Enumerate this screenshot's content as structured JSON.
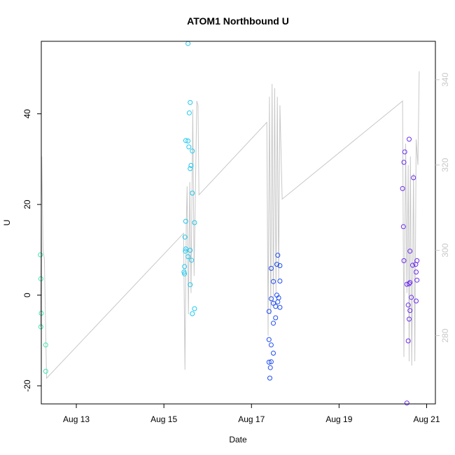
{
  "chart_data": {
    "type": "scatter",
    "title": "ATOM1 Northbound U",
    "xlabel": "Date",
    "ylabel": "U",
    "x_ticks": [
      "Aug 13",
      "Aug 15",
      "Aug 17",
      "Aug 19",
      "Aug 21"
    ],
    "x_tick_values": [
      13,
      15,
      17,
      19,
      21
    ],
    "xlim": [
      12.2,
      21.2
    ],
    "y_ticks": [
      -20,
      0,
      20,
      40
    ],
    "ylim": [
      -24,
      56
    ],
    "y2_ticks": [
      280,
      300,
      320,
      340
    ],
    "y2lim": [
      264,
      349
    ],
    "grid": false,
    "legend": "none",
    "colors": {
      "background_line": "#c8c8c8",
      "right_axis": "#c8c8c8",
      "frame": "#000000"
    },
    "series": [
      {
        "color": "#3be6b0",
        "points": [
          [
            12.18,
            8.9
          ],
          [
            12.19,
            3.6
          ],
          [
            12.2,
            -4.0
          ],
          [
            12.19,
            -7.0
          ],
          [
            12.3,
            -11.0
          ],
          [
            12.3,
            -16.8
          ]
        ]
      },
      {
        "color": "#1fc8f0",
        "points": [
          [
            15.55,
            55.5
          ],
          [
            15.6,
            42.5
          ],
          [
            15.58,
            40.2
          ],
          [
            15.5,
            34.1
          ],
          [
            15.55,
            34.0
          ],
          [
            15.57,
            32.7
          ],
          [
            15.65,
            31.8
          ],
          [
            15.62,
            28.6
          ],
          [
            15.6,
            27.9
          ],
          [
            15.65,
            22.5
          ],
          [
            15.5,
            16.3
          ],
          [
            15.7,
            16.0
          ],
          [
            15.48,
            12.8
          ],
          [
            15.5,
            10.2
          ],
          [
            15.49,
            9.7
          ],
          [
            15.6,
            9.9
          ],
          [
            15.55,
            8.5
          ],
          [
            15.63,
            7.7
          ],
          [
            15.47,
            6.3
          ],
          [
            15.46,
            5.1
          ],
          [
            15.47,
            4.7
          ],
          [
            15.6,
            2.3
          ],
          [
            15.7,
            -3.0
          ],
          [
            15.65,
            -4.1
          ]
        ]
      },
      {
        "color": "#1f4cf0",
        "points": [
          [
            17.6,
            8.8
          ],
          [
            17.58,
            6.8
          ],
          [
            17.65,
            6.5
          ],
          [
            17.45,
            5.9
          ],
          [
            17.5,
            3.0
          ],
          [
            17.65,
            3.1
          ],
          [
            17.58,
            0.0
          ],
          [
            17.62,
            -0.6
          ],
          [
            17.45,
            -0.8
          ],
          [
            17.5,
            -1.8
          ],
          [
            17.6,
            -1.5
          ],
          [
            17.55,
            -2.5
          ],
          [
            17.65,
            -2.7
          ],
          [
            17.4,
            -3.6
          ],
          [
            17.55,
            -5.0
          ],
          [
            17.5,
            -6.2
          ],
          [
            17.4,
            -9.8
          ],
          [
            17.45,
            -11.0
          ],
          [
            17.5,
            -12.8
          ],
          [
            17.4,
            -14.8
          ],
          [
            17.45,
            -14.7
          ],
          [
            17.43,
            -16.0
          ],
          [
            17.42,
            -18.3
          ]
        ]
      },
      {
        "color": "#6b2cf0",
        "points": [
          [
            20.6,
            34.4
          ],
          [
            20.5,
            31.6
          ],
          [
            20.48,
            29.3
          ],
          [
            20.45,
            23.5
          ],
          [
            20.7,
            25.9
          ],
          [
            20.47,
            15.1
          ],
          [
            20.62,
            9.7
          ],
          [
            20.48,
            7.6
          ],
          [
            20.78,
            7.6
          ],
          [
            20.75,
            6.8
          ],
          [
            20.68,
            6.6
          ],
          [
            20.76,
            5.1
          ],
          [
            20.78,
            3.3
          ],
          [
            20.62,
            2.8
          ],
          [
            20.6,
            2.5
          ],
          [
            20.55,
            2.4
          ],
          [
            20.76,
            -1.3
          ],
          [
            20.65,
            -0.5
          ],
          [
            20.58,
            -2.2
          ],
          [
            20.62,
            -3.4
          ],
          [
            20.6,
            -5.3
          ],
          [
            20.58,
            -10.1
          ],
          [
            20.55,
            -23.8
          ]
        ]
      }
    ],
    "background_line": {
      "axis": "right",
      "points": [
        [
          12.18,
          282
        ],
        [
          12.21,
          322
        ],
        [
          12.24,
          300
        ],
        [
          12.27,
          298
        ],
        [
          12.32,
          270
        ],
        [
          15.45,
          304
        ],
        [
          15.48,
          272
        ],
        [
          15.51,
          306
        ],
        [
          15.53,
          315
        ],
        [
          15.56,
          285
        ],
        [
          15.59,
          316
        ],
        [
          15.62,
          290
        ],
        [
          15.66,
          333
        ],
        [
          15.69,
          294
        ],
        [
          15.72,
          314
        ],
        [
          15.75,
          335
        ],
        [
          15.78,
          334
        ],
        [
          15.8,
          313
        ],
        [
          17.35,
          330
        ],
        [
          17.38,
          280
        ],
        [
          17.41,
          336
        ],
        [
          17.44,
          285
        ],
        [
          17.47,
          339
        ],
        [
          17.5,
          287
        ],
        [
          17.53,
          338
        ],
        [
          17.56,
          290
        ],
        [
          17.59,
          336
        ],
        [
          17.62,
          293
        ],
        [
          17.65,
          334
        ],
        [
          17.7,
          312
        ],
        [
          20.45,
          335
        ],
        [
          20.48,
          275
        ],
        [
          20.52,
          325
        ],
        [
          20.55,
          290
        ],
        [
          20.58,
          320
        ],
        [
          20.6,
          274
        ],
        [
          20.63,
          322
        ],
        [
          20.66,
          273
        ],
        [
          20.7,
          318
        ],
        [
          20.73,
          274
        ],
        [
          20.76,
          326
        ],
        [
          20.8,
          320
        ],
        [
          20.83,
          342
        ]
      ]
    }
  }
}
